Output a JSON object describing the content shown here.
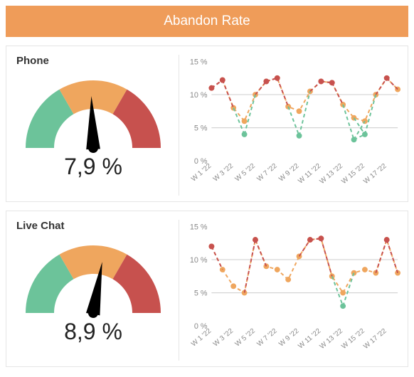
{
  "header": {
    "title": "Abandon Rate",
    "background_color": "#ef9c59",
    "text_color": "#ffffff",
    "fontsize": 19
  },
  "palette": {
    "green": "#6cc39a",
    "orange": "#efa65e",
    "red": "#c7514e",
    "needle": "#000000",
    "grid": "#cccccc",
    "axis_text": "#888888",
    "panel_border": "#e5e5e5"
  },
  "gauge_ranges": {
    "green_deg": [
      180,
      240
    ],
    "orange_deg": [
      240,
      300
    ],
    "red_deg": [
      300,
      360
    ]
  },
  "panels": [
    {
      "label": "Phone",
      "value_text": "7,9 %",
      "value_numeric": 7.9,
      "needle_angle_deg": 268,
      "chart": {
        "type": "line",
        "ylim": [
          0,
          15
        ],
        "yticks": [
          0,
          5,
          10,
          15
        ],
        "ytick_labels": [
          "0 %",
          "5 %",
          "10 %",
          "15 %"
        ],
        "grid_at": [
          5,
          10
        ],
        "x_labels": [
          "W 1 '22",
          "W 3 '22",
          "W 5 '22",
          "W 7 '22",
          "W 9 '22",
          "W 11 '22",
          "W 13 '22",
          "W 15 '22",
          "W 17 '22"
        ],
        "n_points": 18,
        "series": [
          {
            "name": "high",
            "color": "#c7514e",
            "dash": "5,4",
            "marker": "circle",
            "marker_size": 4,
            "values": [
              11,
              12.2,
              null,
              null,
              null,
              12,
              12.5,
              null,
              null,
              null,
              12,
              11.8,
              null,
              null,
              null,
              null,
              12.5,
              null
            ]
          },
          {
            "name": "mid",
            "color": "#efa65e",
            "dash": "5,4",
            "marker": "circle",
            "marker_size": 4,
            "values": [
              11,
              12.2,
              8,
              6,
              10,
              12,
              12.5,
              8.2,
              7.5,
              10.5,
              12,
              11.8,
              8.5,
              6.5,
              6,
              10,
              12.5,
              10.8
            ]
          },
          {
            "name": "low",
            "color": "#6cc39a",
            "dash": "5,4",
            "marker": "circle",
            "marker_size": 4,
            "values": [
              null,
              null,
              null,
              4,
              null,
              null,
              null,
              null,
              3.8,
              null,
              null,
              null,
              null,
              3.2,
              4,
              null,
              null,
              null
            ]
          }
        ]
      }
    },
    {
      "label": "Live Chat",
      "value_text": "8,9 %",
      "value_numeric": 8.9,
      "needle_angle_deg": 280,
      "chart": {
        "type": "line",
        "ylim": [
          0,
          15
        ],
        "yticks": [
          0,
          5,
          10,
          15
        ],
        "ytick_labels": [
          "0 %",
          "5 %",
          "10 %",
          "15 %"
        ],
        "grid_at": [
          5,
          10
        ],
        "x_labels": [
          "W 1 '22",
          "W 3 '22",
          "W 5 '22",
          "W 7 '22",
          "W 9 '22",
          "W 11 '22",
          "W 13 '22",
          "W 15 '22",
          "W 17 '22"
        ],
        "n_points": 18,
        "series": [
          {
            "name": "high",
            "color": "#c7514e",
            "dash": "5,4",
            "marker": "circle",
            "marker_size": 4,
            "values": [
              12,
              null,
              null,
              null,
              13,
              null,
              null,
              null,
              null,
              13,
              13.2,
              null,
              null,
              null,
              null,
              null,
              13,
              null
            ]
          },
          {
            "name": "mid",
            "color": "#efa65e",
            "dash": "5,4",
            "marker": "circle",
            "marker_size": 4,
            "values": [
              12,
              8.5,
              6,
              5,
              13,
              9,
              8.5,
              7,
              10.5,
              13,
              13.2,
              7.5,
              5,
              8,
              8.5,
              8,
              13,
              8
            ]
          },
          {
            "name": "low",
            "color": "#6cc39a",
            "dash": "5,4",
            "marker": "circle",
            "marker_size": 4,
            "values": [
              null,
              null,
              null,
              null,
              null,
              null,
              null,
              null,
              null,
              null,
              null,
              null,
              3,
              null,
              null,
              null,
              null,
              null
            ]
          }
        ]
      }
    }
  ]
}
